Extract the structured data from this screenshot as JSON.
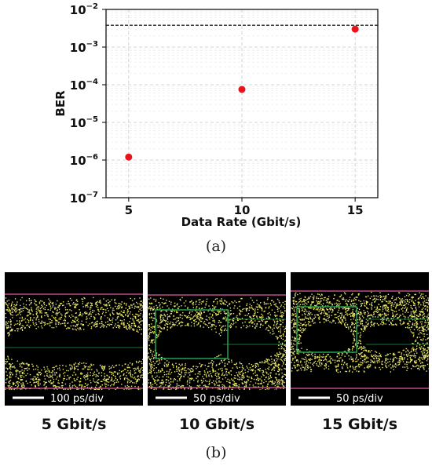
{
  "chart_data": {
    "type": "scatter",
    "xlabel": "Data Rate (Gbit/s)",
    "ylabel": "BER",
    "x": [
      5,
      10,
      15
    ],
    "y": [
      1.2e-06,
      7.5e-05,
      0.003
    ],
    "xlim": [
      4,
      16
    ],
    "ylim": [
      1e-07,
      0.01
    ],
    "yscale": "log",
    "xticks": [
      5,
      10,
      15
    ],
    "xtick_labels": [
      "5",
      "10",
      "15"
    ],
    "ytick_labels": [
      {
        "base": "10",
        "exp": "−7",
        "value": 1e-07
      },
      {
        "base": "10",
        "exp": "−6",
        "value": 1e-06
      },
      {
        "base": "10",
        "exp": "−5",
        "value": 1e-05
      },
      {
        "base": "10",
        "exp": "−4",
        "value": 0.0001
      },
      {
        "base": "10",
        "exp": "−3",
        "value": 0.001
      },
      {
        "base": "10",
        "exp": "−2",
        "value": 0.01
      }
    ],
    "threshold": 0.0038,
    "grid": true,
    "marker_color": "#e8141c"
  },
  "captions": {
    "a": "(a)",
    "b": "(b)"
  },
  "eye_diagrams": [
    {
      "label": "5 Gbit/s",
      "scale": "100 ps/div",
      "eyes": 2
    },
    {
      "label": "10 Gbit/s",
      "scale": "50 ps/div",
      "eyes": 2
    },
    {
      "label": "15 Gbit/s",
      "scale": "50 ps/div",
      "eyes": 2
    }
  ],
  "colors": {
    "eye_trace": "#e9e86a",
    "mask": "#1fa24a",
    "limit_line": "#e25aa0",
    "background": "#000000"
  }
}
